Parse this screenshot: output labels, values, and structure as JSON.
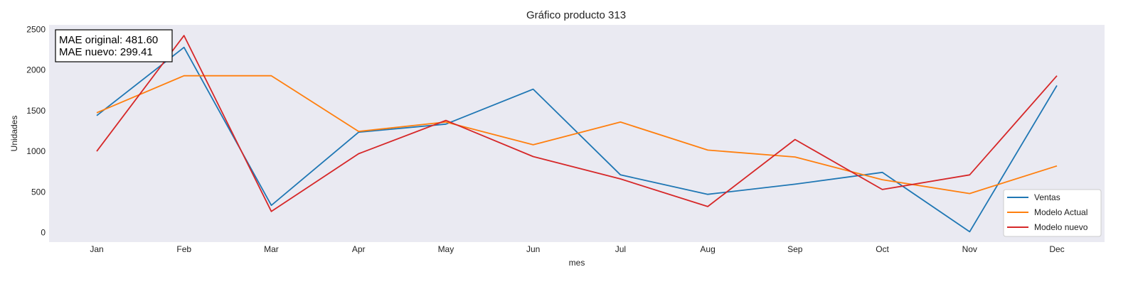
{
  "chart_data": {
    "type": "line",
    "title": "Gráfico producto 313",
    "xlabel": "mes",
    "ylabel": "Unidades",
    "categories": [
      "Jan",
      "Feb",
      "Mar",
      "Apr",
      "May",
      "Jun",
      "Jul",
      "Aug",
      "Sep",
      "Oct",
      "Nov",
      "Dec"
    ],
    "yticks": [
      0,
      500,
      1000,
      1500,
      2000,
      2500
    ],
    "ylim": [
      -100,
      2560
    ],
    "grid": false,
    "legend_position": "lower-right",
    "annotation": [
      "MAE original: 481.60",
      "MAE nuevo: 299.41"
    ],
    "series": [
      {
        "name": "Ventas",
        "color": "#1f77b4",
        "values": [
          1440,
          2280,
          335,
          1235,
          1335,
          1765,
          710,
          470,
          595,
          740,
          10,
          1810
        ]
      },
      {
        "name": "Modelo Actual",
        "color": "#ff7f0e",
        "values": [
          1475,
          1930,
          1930,
          1245,
          1360,
          1080,
          1360,
          1015,
          930,
          650,
          480,
          820
        ]
      },
      {
        "name": "Modelo nuevo",
        "color": "#d62728",
        "values": [
          1000,
          2425,
          260,
          970,
          1380,
          935,
          660,
          320,
          1145,
          530,
          710,
          1930
        ]
      }
    ]
  }
}
